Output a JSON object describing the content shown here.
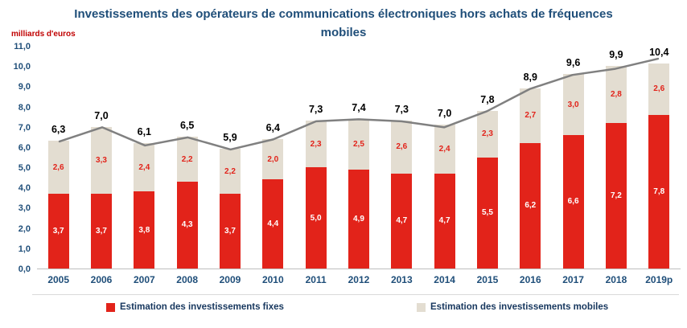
{
  "title": "Investissements des opérateurs de communications électroniques hors achats de fréquences mobiles",
  "ylabel": "milliards d'euros",
  "colors": {
    "title_blue": "#1f4e79",
    "fixed_red": "#e2231a",
    "mobile_beige": "#e3ddd1",
    "total_line_gray": "#808080",
    "unit_label_red": "#c00000",
    "legend_text": "#17375e"
  },
  "chart_data": {
    "type": "bar",
    "stacked": true,
    "title": "Investissements des opérateurs de communications électroniques hors achats de fréquences mobiles",
    "ylabel": "milliards d'euros",
    "ylim": [
      0,
      11
    ],
    "ytick_step": 1,
    "ytick_labels": [
      "0,0",
      "1,0",
      "2,0",
      "3,0",
      "4,0",
      "5,0",
      "6,0",
      "7,0",
      "8,0",
      "9,0",
      "10,0",
      "11,0"
    ],
    "grid": false,
    "legend_position": "bottom",
    "categories": [
      "2005",
      "2006",
      "2007",
      "2008",
      "2009",
      "2010",
      "2011",
      "2012",
      "2013",
      "2014",
      "2015",
      "2016",
      "2017",
      "2018",
      "2019p"
    ],
    "series": [
      {
        "name": "Estimation des investissements fixes",
        "color": "#e2231a",
        "label_color": "#ffffff",
        "values": [
          3.7,
          3.7,
          3.8,
          4.3,
          3.7,
          4.4,
          5.0,
          4.9,
          4.7,
          4.7,
          5.5,
          6.2,
          6.6,
          7.2,
          7.8
        ],
        "labels": [
          "3,7",
          "3,7",
          "3,8",
          "4,3",
          "3,7",
          "4,4",
          "5,0",
          "4,9",
          "4,7",
          "4,7",
          "5,5",
          "6,2",
          "6,6",
          "7,2",
          "7,8"
        ]
      },
      {
        "name": "Estimation des investissements  mobiles",
        "color": "#e3ddd1",
        "label_color": "#e2231a",
        "values": [
          2.6,
          3.3,
          2.4,
          2.2,
          2.2,
          2.0,
          2.3,
          2.5,
          2.6,
          2.4,
          2.3,
          2.7,
          3.0,
          2.8,
          2.6
        ],
        "labels": [
          "2,6",
          "3,3",
          "2,4",
          "2,2",
          "2,2",
          "2,0",
          "2,3",
          "2,5",
          "2,6",
          "2,4",
          "2,3",
          "2,7",
          "3,0",
          "2,8",
          "2,6"
        ]
      }
    ],
    "line_series": {
      "name": "Total",
      "color": "#808080",
      "values": [
        6.3,
        7.0,
        6.1,
        6.5,
        5.9,
        6.4,
        7.3,
        7.4,
        7.3,
        7.0,
        7.8,
        8.9,
        9.6,
        9.9,
        10.4
      ]
    },
    "total_labels": [
      "6,3",
      "7,0",
      "6,1",
      "6,5",
      "5,9",
      "6,4",
      "7,3",
      "7,4",
      "7,3",
      "7,0",
      "7,8",
      "8,9",
      "9,6",
      "9,9",
      "10,4"
    ]
  },
  "legend": [
    {
      "label": "Estimation des investissements fixes",
      "color": "#e2231a"
    },
    {
      "label": "Estimation des investissements  mobiles",
      "color": "#e3ddd1"
    }
  ]
}
